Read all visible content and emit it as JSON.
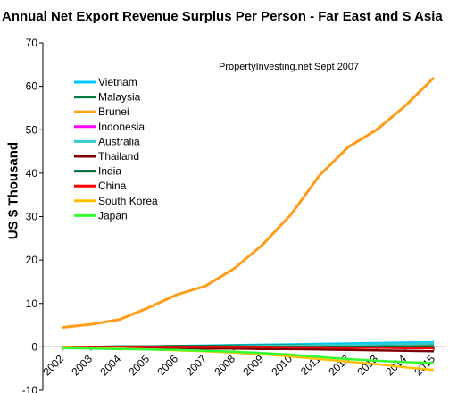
{
  "chart_data": {
    "type": "line",
    "title": "Annual Net Export Revenue Surplus Per Person -  Far East and S Asia",
    "xlabel": "",
    "ylabel": "US $ Thousand",
    "annotation": "PropertyInvesting.net     Sept 2007",
    "ylim": [
      -10,
      70
    ],
    "yticks": [
      "-10",
      "0",
      "10",
      "20",
      "30",
      "40",
      "50",
      "60",
      "70"
    ],
    "categories": [
      "2002",
      "2003",
      "2004",
      "2005",
      "2006",
      "2007",
      "2008",
      "2009",
      "2010",
      "2011",
      "2012",
      "2013",
      "2014",
      "2015"
    ],
    "legend_position": "top-left",
    "grid": false,
    "series": [
      {
        "name": "Vietnam",
        "color": "#00c8ff",
        "values": [
          0,
          0,
          0.1,
          0.1,
          0.2,
          0.3,
          0.4,
          0.5,
          0.6,
          0.7,
          0.8,
          0.9,
          1.0,
          1.1
        ]
      },
      {
        "name": "Malaysia",
        "color": "#007a3d",
        "values": [
          0,
          0,
          0.1,
          0.1,
          0.2,
          0.2,
          0.3,
          0.3,
          0.4,
          0.4,
          0.5,
          0.5,
          0.6,
          0.6
        ]
      },
      {
        "name": "Brunei",
        "color": "#ff9c1a",
        "values": [
          4.5,
          5.2,
          6.3,
          9,
          12,
          14,
          18,
          23.5,
          30.5,
          39.5,
          46,
          50,
          55.5,
          62
        ]
      },
      {
        "name": "Indonesia",
        "color": "#ff00ff",
        "values": [
          0,
          0,
          0,
          0,
          0,
          0,
          0,
          0,
          0,
          0,
          0,
          0,
          0,
          0
        ]
      },
      {
        "name": "Australia",
        "color": "#33cccc",
        "values": [
          0,
          0,
          0,
          0,
          0,
          0,
          0.1,
          0.2,
          0.3,
          0.4,
          0.5,
          0.6,
          0.7,
          0.8
        ]
      },
      {
        "name": "Thailand",
        "color": "#800000",
        "values": [
          -0.2,
          -0.2,
          -0.3,
          -0.3,
          -0.3,
          -0.4,
          -0.4,
          -0.5,
          -0.5,
          -0.6,
          -0.7,
          -0.8,
          -0.9,
          -1.0
        ]
      },
      {
        "name": "India",
        "color": "#006633",
        "values": [
          0,
          0,
          0,
          0,
          0,
          0,
          0,
          0,
          0,
          0,
          0,
          0,
          0,
          0
        ]
      },
      {
        "name": "China",
        "color": "#ff0000",
        "values": [
          0,
          0,
          0,
          0,
          0,
          0,
          0,
          0,
          -0.1,
          -0.1,
          -0.2,
          -0.2,
          -0.3,
          -0.3
        ]
      },
      {
        "name": "South Korea",
        "color": "#ffc000",
        "values": [
          0,
          -0.2,
          -0.4,
          -0.6,
          -0.8,
          -1.0,
          -1.3,
          -1.7,
          -2.2,
          -2.8,
          -3.4,
          -4.0,
          -4.7,
          -5.3
        ]
      },
      {
        "name": "Japan",
        "color": "#33ff33",
        "values": [
          -0.3,
          -0.4,
          -0.5,
          -0.6,
          -0.7,
          -0.9,
          -1.1,
          -1.4,
          -1.8,
          -2.3,
          -2.8,
          -3.2,
          -3.5,
          -3.7
        ]
      }
    ]
  }
}
